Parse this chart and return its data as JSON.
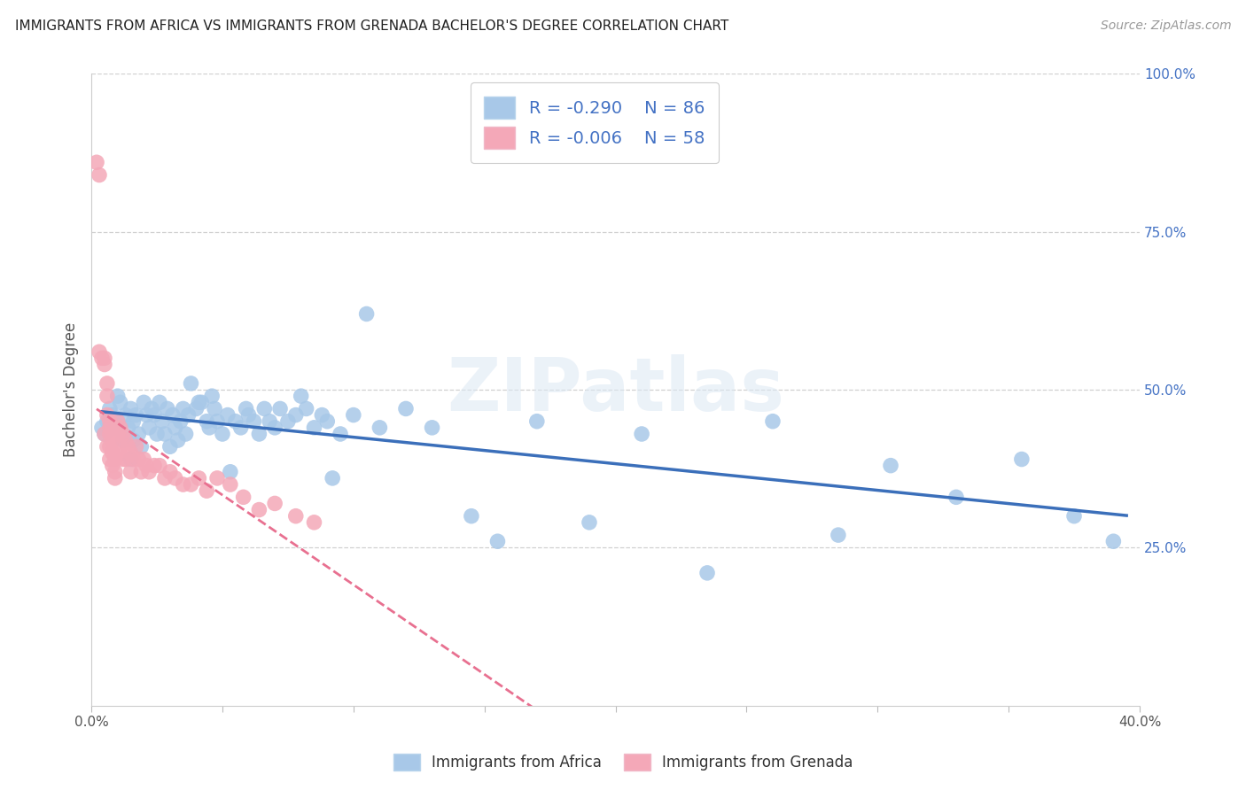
{
  "title": "IMMIGRANTS FROM AFRICA VS IMMIGRANTS FROM GRENADA BACHELOR'S DEGREE CORRELATION CHART",
  "source": "Source: ZipAtlas.com",
  "ylabel": "Bachelor's Degree",
  "ylabel_right_labels": [
    "100.0%",
    "75.0%",
    "50.0%",
    "25.0%"
  ],
  "ylabel_right_positions": [
    1.0,
    0.75,
    0.5,
    0.25
  ],
  "africa_R": -0.29,
  "africa_N": 86,
  "grenada_R": -0.006,
  "grenada_N": 58,
  "africa_color": "#a8c8e8",
  "grenada_color": "#f4a8b8",
  "africa_line_color": "#3b6fba",
  "grenada_line_color": "#e87090",
  "legend_africa_face": "#a8c8e8",
  "legend_grenada_face": "#f4a8b8",
  "xlim": [
    0.0,
    0.4
  ],
  "ylim": [
    0.0,
    1.0
  ],
  "background_color": "#ffffff",
  "africa_scatter_x": [
    0.004,
    0.005,
    0.006,
    0.007,
    0.008,
    0.009,
    0.01,
    0.01,
    0.011,
    0.012,
    0.013,
    0.014,
    0.015,
    0.015,
    0.016,
    0.016,
    0.017,
    0.018,
    0.019,
    0.02,
    0.021,
    0.022,
    0.023,
    0.024,
    0.025,
    0.026,
    0.027,
    0.028,
    0.029,
    0.03,
    0.031,
    0.032,
    0.033,
    0.034,
    0.035,
    0.036,
    0.037,
    0.038,
    0.04,
    0.041,
    0.042,
    0.044,
    0.045,
    0.046,
    0.047,
    0.048,
    0.05,
    0.052,
    0.053,
    0.055,
    0.057,
    0.059,
    0.06,
    0.062,
    0.064,
    0.066,
    0.068,
    0.07,
    0.072,
    0.075,
    0.078,
    0.08,
    0.082,
    0.085,
    0.088,
    0.09,
    0.092,
    0.095,
    0.1,
    0.105,
    0.11,
    0.12,
    0.13,
    0.145,
    0.155,
    0.17,
    0.19,
    0.21,
    0.235,
    0.26,
    0.285,
    0.305,
    0.33,
    0.355,
    0.375,
    0.39
  ],
  "africa_scatter_y": [
    0.44,
    0.43,
    0.45,
    0.47,
    0.46,
    0.44,
    0.49,
    0.45,
    0.48,
    0.42,
    0.46,
    0.44,
    0.47,
    0.39,
    0.42,
    0.45,
    0.46,
    0.43,
    0.41,
    0.48,
    0.46,
    0.44,
    0.47,
    0.46,
    0.43,
    0.48,
    0.45,
    0.43,
    0.47,
    0.41,
    0.46,
    0.44,
    0.42,
    0.45,
    0.47,
    0.43,
    0.46,
    0.51,
    0.47,
    0.48,
    0.48,
    0.45,
    0.44,
    0.49,
    0.47,
    0.45,
    0.43,
    0.46,
    0.37,
    0.45,
    0.44,
    0.47,
    0.46,
    0.45,
    0.43,
    0.47,
    0.45,
    0.44,
    0.47,
    0.45,
    0.46,
    0.49,
    0.47,
    0.44,
    0.46,
    0.45,
    0.36,
    0.43,
    0.46,
    0.62,
    0.44,
    0.47,
    0.44,
    0.3,
    0.26,
    0.45,
    0.29,
    0.43,
    0.21,
    0.45,
    0.27,
    0.38,
    0.33,
    0.39,
    0.3,
    0.26
  ],
  "grenada_scatter_x": [
    0.002,
    0.003,
    0.003,
    0.004,
    0.005,
    0.005,
    0.005,
    0.006,
    0.006,
    0.006,
    0.006,
    0.007,
    0.007,
    0.007,
    0.007,
    0.007,
    0.008,
    0.008,
    0.008,
    0.008,
    0.009,
    0.009,
    0.009,
    0.01,
    0.01,
    0.01,
    0.011,
    0.011,
    0.012,
    0.012,
    0.013,
    0.013,
    0.014,
    0.015,
    0.015,
    0.016,
    0.017,
    0.018,
    0.019,
    0.02,
    0.021,
    0.022,
    0.024,
    0.026,
    0.028,
    0.03,
    0.032,
    0.035,
    0.038,
    0.041,
    0.044,
    0.048,
    0.053,
    0.058,
    0.064,
    0.07,
    0.078,
    0.085
  ],
  "grenada_scatter_y": [
    0.86,
    0.84,
    0.56,
    0.55,
    0.55,
    0.54,
    0.43,
    0.51,
    0.49,
    0.46,
    0.41,
    0.45,
    0.44,
    0.43,
    0.41,
    0.39,
    0.43,
    0.42,
    0.4,
    0.38,
    0.39,
    0.37,
    0.36,
    0.45,
    0.43,
    0.4,
    0.44,
    0.41,
    0.43,
    0.39,
    0.42,
    0.39,
    0.41,
    0.4,
    0.37,
    0.39,
    0.41,
    0.39,
    0.37,
    0.39,
    0.38,
    0.37,
    0.38,
    0.38,
    0.36,
    0.37,
    0.36,
    0.35,
    0.35,
    0.36,
    0.34,
    0.36,
    0.35,
    0.33,
    0.31,
    0.32,
    0.3,
    0.29
  ],
  "watermark": "ZIPatlas",
  "watermark_color": "#dce8f0"
}
